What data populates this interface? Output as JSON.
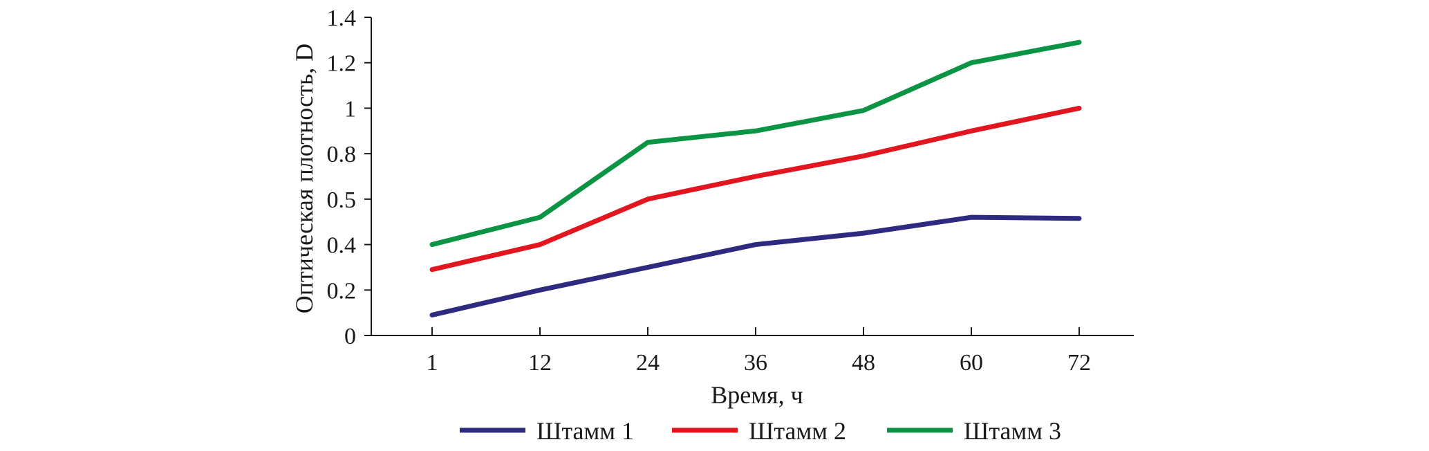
{
  "chart_data": {
    "type": "line",
    "title": "",
    "xlabel": "Время, ч",
    "ylabel": "Оптическая плотность, D",
    "categories": [
      "1",
      "12",
      "24",
      "36",
      "48",
      "60",
      "72"
    ],
    "y_tick_labels": [
      "0",
      "0.2",
      "0.4",
      "0.5",
      "0.8",
      "1",
      "1.2",
      "1.4"
    ],
    "ylim": [
      0,
      1.4
    ],
    "grid": false,
    "legend_position": "bottom",
    "series": [
      {
        "name": "Штамм 1",
        "color": "#2e2a7f",
        "values": [
          0.09,
          0.2,
          0.3,
          0.4,
          0.45,
          0.52,
          0.515
        ]
      },
      {
        "name": "Штамм 2",
        "color": "#e3151f",
        "values": [
          0.29,
          0.4,
          0.6,
          0.7,
          0.79,
          0.9,
          1.0
        ]
      },
      {
        "name": "Штамм 3",
        "color": "#0b9444",
        "values": [
          0.4,
          0.52,
          0.85,
          0.9,
          0.99,
          1.2,
          1.29
        ]
      }
    ]
  }
}
